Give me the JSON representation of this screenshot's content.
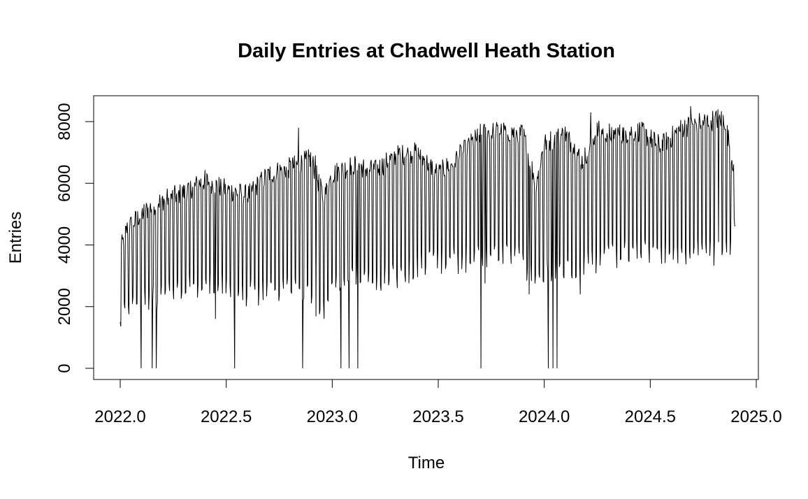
{
  "chart_data": {
    "type": "line",
    "title": "Daily Entries at Chadwell Heath Station",
    "xlabel": "Time",
    "ylabel": "Entries",
    "xlim": [
      2022.0,
      2024.9
    ],
    "ylim": [
      0,
      8500
    ],
    "x_ticks": [
      2022.0,
      2022.5,
      2023.0,
      2023.5,
      2024.0,
      2024.5,
      2025.0
    ],
    "x_tick_labels": [
      "2022.0",
      "2022.5",
      "2023.0",
      "2023.5",
      "2024.0",
      "2024.5",
      "2025.0"
    ],
    "y_ticks": [
      0,
      2000,
      4000,
      6000,
      8000
    ],
    "y_tick_labels": [
      "0",
      "2000",
      "4000",
      "6000",
      "8000"
    ],
    "grid": false,
    "legend": "none",
    "series": [
      {
        "frequency": 365,
        "start": 2022.0,
        "weekly_pattern": "five weekday highs followed by two weekend lows",
        "weekday_level": [
          [
            2022.0,
            3800
          ],
          [
            2022.03,
            4500
          ],
          [
            2022.1,
            5000
          ],
          [
            2022.18,
            5400
          ],
          [
            2022.3,
            5700
          ],
          [
            2022.4,
            6100
          ],
          [
            2022.5,
            5800
          ],
          [
            2022.6,
            5600
          ],
          [
            2022.7,
            6300
          ],
          [
            2022.8,
            6500
          ],
          [
            2022.9,
            6800
          ],
          [
            2022.96,
            5500
          ],
          [
            2023.0,
            6300
          ],
          [
            2023.1,
            6600
          ],
          [
            2023.2,
            6400
          ],
          [
            2023.3,
            6900
          ],
          [
            2023.4,
            7000
          ],
          [
            2023.5,
            6300
          ],
          [
            2023.6,
            6900
          ],
          [
            2023.7,
            7600
          ],
          [
            2023.8,
            7700
          ],
          [
            2023.9,
            7600
          ],
          [
            2023.96,
            6000
          ],
          [
            2024.0,
            7300
          ],
          [
            2024.1,
            7600
          ],
          [
            2024.18,
            6700
          ],
          [
            2024.25,
            7700
          ],
          [
            2024.35,
            7600
          ],
          [
            2024.45,
            7700
          ],
          [
            2024.55,
            7200
          ],
          [
            2024.65,
            7800
          ],
          [
            2024.75,
            8000
          ],
          [
            2024.85,
            8100
          ],
          [
            2024.9,
            6300
          ]
        ],
        "weekend_level": [
          [
            2022.0,
            1500
          ],
          [
            2022.05,
            2100
          ],
          [
            2022.15,
            2300
          ],
          [
            2022.3,
            2500
          ],
          [
            2022.45,
            2800
          ],
          [
            2022.55,
            2400
          ],
          [
            2022.7,
            2500
          ],
          [
            2022.85,
            2800
          ],
          [
            2022.95,
            1700
          ],
          [
            2023.0,
            3000
          ],
          [
            2023.15,
            2800
          ],
          [
            2023.3,
            3000
          ],
          [
            2023.45,
            3500
          ],
          [
            2023.6,
            3500
          ],
          [
            2023.75,
            3700
          ],
          [
            2023.9,
            3500
          ],
          [
            2023.96,
            2800
          ],
          [
            2024.05,
            3300
          ],
          [
            2024.2,
            3400
          ],
          [
            2024.4,
            3800
          ],
          [
            2024.6,
            3800
          ],
          [
            2024.75,
            3800
          ],
          [
            2024.85,
            3700
          ],
          [
            2024.9,
            4500
          ]
        ],
        "zero_days": [
          2022.1,
          2022.15,
          2022.17,
          2022.54,
          2022.84,
          2022.86,
          2023.04,
          2023.08,
          2023.12,
          2023.7,
          2024.02,
          2024.04,
          2024.06
        ],
        "spikes": [
          [
            2022.84,
            7800
          ],
          [
            2022.92,
            6900
          ],
          [
            2024.22,
            8300
          ],
          [
            2024.69,
            8500
          ],
          [
            2024.82,
            8400
          ]
        ],
        "dips": [
          [
            2022.45,
            1600
          ],
          [
            2023.72,
            2750
          ],
          [
            2023.93,
            2400
          ],
          [
            2024.17,
            2400
          ]
        ],
        "first_value": 1500,
        "last_value": 4600
      }
    ]
  }
}
